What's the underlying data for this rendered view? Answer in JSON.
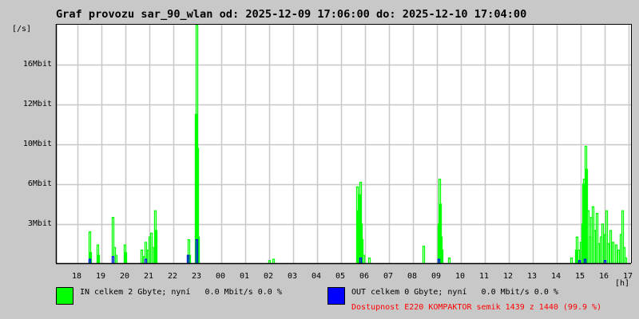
{
  "title": "Graf provozu sar_90_wlan od: 2025-12-09 17:06:00 do: 2025-12-10 17:04:00",
  "chart_data": {
    "type": "line",
    "ylabel": "[/s]",
    "xlabel": "[h]",
    "x_start": "17:06",
    "x_end": "17:04",
    "x_ticks": [
      "18",
      "19",
      "20",
      "21",
      "22",
      "23",
      "00",
      "01",
      "02",
      "03",
      "04",
      "05",
      "06",
      "07",
      "08",
      "09",
      "10",
      "11",
      "12",
      "13",
      "14",
      "15",
      "16",
      "17"
    ],
    "y_ticks": [
      {
        "label": "3Mbit",
        "value": 3
      },
      {
        "label": "6Mbit",
        "value": 6
      },
      {
        "label": "10Mbit",
        "value": 10
      },
      {
        "label": "12Mbit",
        "value": 12
      },
      {
        "label": "16Mbit",
        "value": 16
      }
    ],
    "grid": true,
    "series": [
      {
        "name": "IN",
        "color": "#00ff00",
        "points": [
          [
            "18:30",
            2.4
          ],
          [
            "18:32",
            0.8
          ],
          [
            "18:50",
            1.4
          ],
          [
            "18:52",
            0.6
          ],
          [
            "19:28",
            3.5
          ],
          [
            "19:32",
            1.2
          ],
          [
            "19:36",
            0.6
          ],
          [
            "19:58",
            1.4
          ],
          [
            "20:00",
            0.8
          ],
          [
            "20:40",
            1.0
          ],
          [
            "20:45",
            0.5
          ],
          [
            "20:50",
            1.6
          ],
          [
            "20:55",
            1.0
          ],
          [
            "21:00",
            2.0
          ],
          [
            "21:05",
            2.3
          ],
          [
            "21:08",
            1.2
          ],
          [
            "21:14",
            4.0
          ],
          [
            "21:16",
            2.5
          ],
          [
            "22:38",
            1.8
          ],
          [
            "22:40",
            0.6
          ],
          [
            "22:56",
            11.5
          ],
          [
            "22:58",
            20
          ],
          [
            "23:00",
            9.6
          ],
          [
            "23:02",
            2.0
          ],
          [
            "02:00",
            0.2
          ],
          [
            "02:10",
            0.3
          ],
          [
            "05:40",
            5.8
          ],
          [
            "05:42",
            4.0
          ],
          [
            "05:46",
            5.2
          ],
          [
            "05:48",
            6.2
          ],
          [
            "05:50",
            3.0
          ],
          [
            "05:52",
            1.8
          ],
          [
            "05:56",
            0.6
          ],
          [
            "06:10",
            0.4
          ],
          [
            "08:26",
            1.3
          ],
          [
            "09:04",
            3.0
          ],
          [
            "09:06",
            6.5
          ],
          [
            "09:08",
            4.5
          ],
          [
            "09:10",
            2.0
          ],
          [
            "09:12",
            1.0
          ],
          [
            "09:30",
            0.4
          ],
          [
            "14:36",
            0.4
          ],
          [
            "14:48",
            1.0
          ],
          [
            "14:50",
            2.0
          ],
          [
            "14:54",
            1.0
          ],
          [
            "15:00",
            1.6
          ],
          [
            "15:04",
            3.0
          ],
          [
            "15:06",
            6.0
          ],
          [
            "15:08",
            6.5
          ],
          [
            "15:12",
            9.8
          ],
          [
            "15:14",
            7.5
          ],
          [
            "15:18",
            4.0
          ],
          [
            "15:22",
            2.0
          ],
          [
            "15:26",
            3.5
          ],
          [
            "15:30",
            4.3
          ],
          [
            "15:34",
            2.5
          ],
          [
            "15:40",
            3.8
          ],
          [
            "15:44",
            1.5
          ],
          [
            "15:50",
            2.0
          ],
          [
            "15:54",
            3.0
          ],
          [
            "16:00",
            2.2
          ],
          [
            "16:04",
            4.0
          ],
          [
            "16:08",
            1.5
          ],
          [
            "16:14",
            2.5
          ],
          [
            "16:20",
            1.6
          ],
          [
            "16:28",
            1.4
          ],
          [
            "16:34",
            1.0
          ],
          [
            "16:40",
            2.2
          ],
          [
            "16:44",
            4.0
          ],
          [
            "16:48",
            1.2
          ],
          [
            "16:52",
            0.4
          ]
        ]
      },
      {
        "name": "OUT",
        "color": "#0000ff",
        "points": [
          [
            "18:30",
            0.3
          ],
          [
            "19:28",
            0.5
          ],
          [
            "20:50",
            0.3
          ],
          [
            "22:36",
            0.6
          ],
          [
            "22:58",
            1.8
          ],
          [
            "05:48",
            0.4
          ],
          [
            "09:04",
            0.3
          ],
          [
            "14:56",
            0.2
          ],
          [
            "15:10",
            0.3
          ],
          [
            "16:00",
            0.2
          ]
        ]
      }
    ]
  },
  "legend": {
    "in_text": "IN celkem 2 Gbyte; nyní   0.0 Mbit/s 0.0 %",
    "in_color": "#00ff00",
    "out_text": "OUT celkem 0 Gbyte; nyní   0.0 Mbit/s 0.0 %",
    "out_color": "#0000ff",
    "availability": "Dostupnost E220 KOMPAKTOR semik 1439 z 1440 (99.9 %)",
    "availability_color": "#ff0000"
  }
}
